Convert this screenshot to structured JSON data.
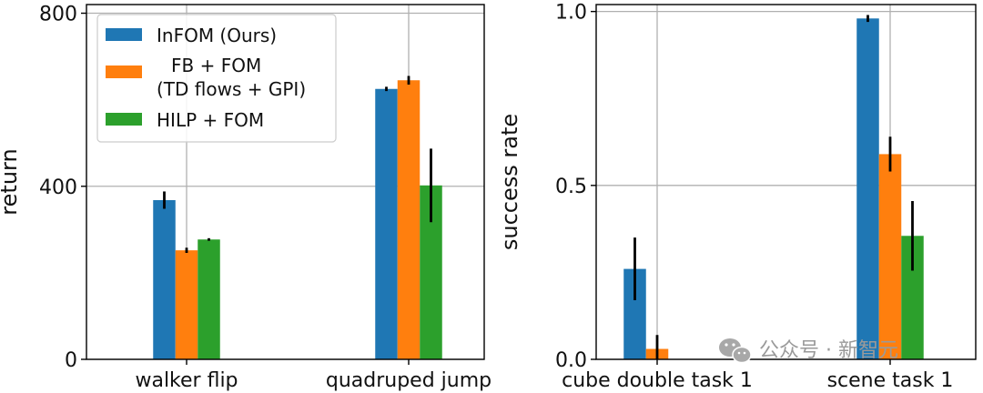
{
  "colors": {
    "InFOM (Ours)": "#1f77b4",
    "FB + FOM (TD flows + GPI)": "#ff7f0e",
    "HILP + FOM": "#2ca02c",
    "grid": "#b0b0b0",
    "errorbar": "#000000"
  },
  "legend": {
    "entries": [
      {
        "lines": [
          "InFOM (Ours)"
        ]
      },
      {
        "lines": [
          "FB + FOM",
          "(TD flows + GPI)"
        ]
      },
      {
        "lines": [
          "HILP + FOM"
        ]
      }
    ],
    "placement": "top-left (left panel)"
  },
  "watermark": {
    "icon": "wechat-icon",
    "text": "公众号 · 新智元"
  },
  "chart_data": [
    {
      "type": "bar",
      "categories": [
        "walker flip",
        "quadruped jump"
      ],
      "series": [
        {
          "name": "InFOM (Ours)",
          "values": [
            368,
            625
          ],
          "errors": [
            20,
            5
          ]
        },
        {
          "name": "FB + FOM (TD flows + GPI)",
          "values": [
            252,
            645
          ],
          "errors": [
            6,
            10
          ]
        },
        {
          "name": "HILP + FOM",
          "values": [
            277,
            402
          ],
          "errors": [
            3,
            85
          ]
        }
      ],
      "ylabel": "return",
      "xlabel": "",
      "ylim": [
        0,
        820
      ],
      "yticks": [
        0,
        400,
        800
      ],
      "ytick_labels": [
        "0",
        "400",
        "800"
      ],
      "grid": true,
      "legend": "top-left"
    },
    {
      "type": "bar",
      "categories": [
        "cube double task 1",
        "scene task 1"
      ],
      "series": [
        {
          "name": "InFOM (Ours)",
          "values": [
            0.26,
            0.98
          ],
          "errors": [
            0.09,
            0.01
          ]
        },
        {
          "name": "FB + FOM (TD flows + GPI)",
          "values": [
            0.03,
            0.59
          ],
          "errors": [
            0.04,
            0.05
          ]
        },
        {
          "name": "HILP + FOM",
          "values": [
            0.0,
            0.355
          ],
          "errors": [
            0.0,
            0.1
          ]
        }
      ],
      "ylabel": "success rate",
      "xlabel": "",
      "ylim": [
        0,
        1.02
      ],
      "yticks": [
        0.0,
        0.5,
        1.0
      ],
      "ytick_labels": [
        "0.0",
        "0.5",
        "1.0"
      ],
      "grid": true,
      "legend": "none"
    }
  ]
}
